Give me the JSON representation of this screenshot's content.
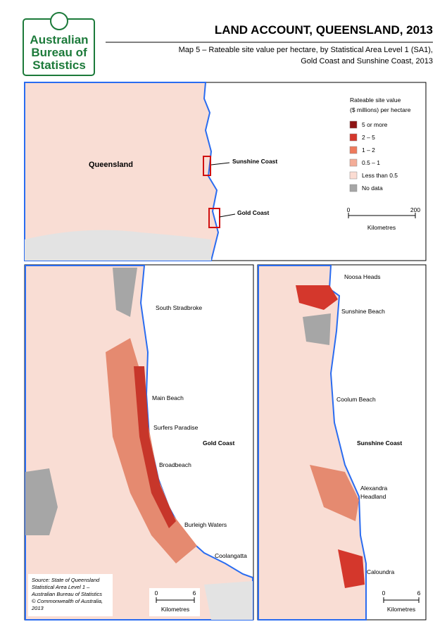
{
  "header": {
    "logo_text": [
      "Australian",
      "Bureau of",
      "Statistics"
    ],
    "title": "LAND ACCOUNT, QUEENSLAND, 2013",
    "subtitle": [
      "Map 5 – Rateable site value per hectare, by Statistical Area Level 1 (SA1),",
      "Gold Coast and Sunshine Coast, 2013"
    ]
  },
  "overview_map": {
    "labels": [
      "Queensland",
      "Sunshine Coast",
      "Gold Coast"
    ],
    "legend": {
      "title": [
        "Rateable site value",
        "($ millions) per hectare"
      ],
      "items": [
        {
          "label": "5 or more",
          "color": "#8e1414"
        },
        {
          "label": "2 – 5",
          "color": "#d4372c"
        },
        {
          "label": "1 – 2",
          "color": "#ee7a5c"
        },
        {
          "label": "0.5 – 1",
          "color": "#f4ad98"
        },
        {
          "label": "Less than 0.5",
          "color": "#fbdcd2"
        },
        {
          "label": "No data",
          "color": "#a6a6a6"
        }
      ]
    },
    "scale": {
      "ticks": [
        "0",
        "200"
      ],
      "unit": "Kilometres"
    }
  },
  "gold_coast_map": {
    "labels": [
      "South Stradbroke",
      "Main Beach",
      "Surfers Paradise",
      "Gold Coast",
      "Broadbeach",
      "Burleigh Waters",
      "Coolangatta"
    ],
    "source": [
      "Source: State of Queensland",
      "Statistical Area Level 1 –",
      "Australian Bureau of Statistics",
      "© Commonwealth of Australia,",
      "2013"
    ],
    "scale": {
      "ticks": [
        "0",
        "6"
      ],
      "unit": "Kilometres"
    }
  },
  "sunshine_coast_map": {
    "labels": [
      "Noosa Heads",
      "Sunshine Beach",
      "Coolum Beach",
      "Sunshine Coast",
      "Alexandra",
      "Headland",
      "Caloundra"
    ],
    "scale": {
      "ticks": [
        "0",
        "6"
      ],
      "unit": "Kilometres"
    }
  }
}
